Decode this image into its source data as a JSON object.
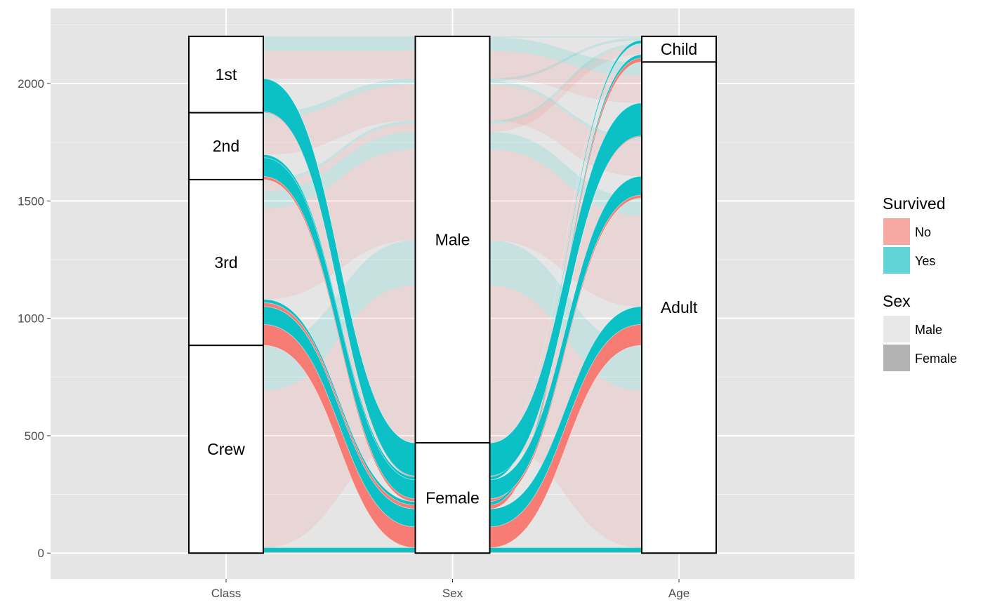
{
  "chart_data": {
    "type": "alluvial",
    "axes": [
      "Class",
      "Sex",
      "Age"
    ],
    "ylim": [
      -110,
      2320
    ],
    "yticks": [
      0,
      500,
      1000,
      1500,
      2000
    ],
    "grid": true,
    "legend_position": "right",
    "strata": {
      "Class": [
        {
          "label": "Crew",
          "value": 885
        },
        {
          "label": "3rd",
          "value": 706
        },
        {
          "label": "2nd",
          "value": 285
        },
        {
          "label": "1st",
          "value": 325
        }
      ],
      "Sex": [
        {
          "label": "Female",
          "value": 470
        },
        {
          "label": "Male",
          "value": 1731
        }
      ],
      "Age": [
        {
          "label": "Adult",
          "value": 2092
        },
        {
          "label": "Child",
          "value": 109
        }
      ]
    },
    "flows": [
      {
        "Class": "1st",
        "Sex": "Male",
        "Age": "Child",
        "Survived": "No",
        "value": 0
      },
      {
        "Class": "2nd",
        "Sex": "Male",
        "Age": "Child",
        "Survived": "No",
        "value": 0
      },
      {
        "Class": "3rd",
        "Sex": "Male",
        "Age": "Child",
        "Survived": "No",
        "value": 35
      },
      {
        "Class": "Crew",
        "Sex": "Male",
        "Age": "Child",
        "Survived": "No",
        "value": 0
      },
      {
        "Class": "1st",
        "Sex": "Female",
        "Age": "Child",
        "Survived": "No",
        "value": 0
      },
      {
        "Class": "2nd",
        "Sex": "Female",
        "Age": "Child",
        "Survived": "No",
        "value": 0
      },
      {
        "Class": "3rd",
        "Sex": "Female",
        "Age": "Child",
        "Survived": "No",
        "value": 17
      },
      {
        "Class": "Crew",
        "Sex": "Female",
        "Age": "Child",
        "Survived": "No",
        "value": 0
      },
      {
        "Class": "1st",
        "Sex": "Male",
        "Age": "Adult",
        "Survived": "No",
        "value": 118
      },
      {
        "Class": "2nd",
        "Sex": "Male",
        "Age": "Adult",
        "Survived": "No",
        "value": 154
      },
      {
        "Class": "3rd",
        "Sex": "Male",
        "Age": "Adult",
        "Survived": "No",
        "value": 387
      },
      {
        "Class": "Crew",
        "Sex": "Male",
        "Age": "Adult",
        "Survived": "No",
        "value": 670
      },
      {
        "Class": "1st",
        "Sex": "Female",
        "Age": "Adult",
        "Survived": "No",
        "value": 4
      },
      {
        "Class": "2nd",
        "Sex": "Female",
        "Age": "Adult",
        "Survived": "No",
        "value": 13
      },
      {
        "Class": "3rd",
        "Sex": "Female",
        "Age": "Adult",
        "Survived": "No",
        "value": 89
      },
      {
        "Class": "Crew",
        "Sex": "Female",
        "Age": "Adult",
        "Survived": "No",
        "value": 3
      },
      {
        "Class": "1st",
        "Sex": "Male",
        "Age": "Child",
        "Survived": "Yes",
        "value": 5
      },
      {
        "Class": "2nd",
        "Sex": "Male",
        "Age": "Child",
        "Survived": "Yes",
        "value": 11
      },
      {
        "Class": "3rd",
        "Sex": "Male",
        "Age": "Child",
        "Survived": "Yes",
        "value": 13
      },
      {
        "Class": "Crew",
        "Sex": "Male",
        "Age": "Child",
        "Survived": "Yes",
        "value": 0
      },
      {
        "Class": "1st",
        "Sex": "Female",
        "Age": "Child",
        "Survived": "Yes",
        "value": 1
      },
      {
        "Class": "2nd",
        "Sex": "Female",
        "Age": "Child",
        "Survived": "Yes",
        "value": 13
      },
      {
        "Class": "3rd",
        "Sex": "Female",
        "Age": "Child",
        "Survived": "Yes",
        "value": 14
      },
      {
        "Class": "Crew",
        "Sex": "Female",
        "Age": "Child",
        "Survived": "Yes",
        "value": 0
      },
      {
        "Class": "1st",
        "Sex": "Male",
        "Age": "Adult",
        "Survived": "Yes",
        "value": 57
      },
      {
        "Class": "2nd",
        "Sex": "Male",
        "Age": "Adult",
        "Survived": "Yes",
        "value": 14
      },
      {
        "Class": "3rd",
        "Sex": "Male",
        "Age": "Adult",
        "Survived": "Yes",
        "value": 75
      },
      {
        "Class": "Crew",
        "Sex": "Male",
        "Age": "Adult",
        "Survived": "Yes",
        "value": 192
      },
      {
        "Class": "1st",
        "Sex": "Female",
        "Age": "Adult",
        "Survived": "Yes",
        "value": 140
      },
      {
        "Class": "2nd",
        "Sex": "Female",
        "Age": "Adult",
        "Survived": "Yes",
        "value": 80
      },
      {
        "Class": "3rd",
        "Sex": "Female",
        "Age": "Adult",
        "Survived": "Yes",
        "value": 76
      },
      {
        "Class": "Crew",
        "Sex": "Female",
        "Age": "Adult",
        "Survived": "Yes",
        "value": 20
      }
    ],
    "legend": [
      {
        "title": "Survived",
        "items": [
          {
            "label": "No",
            "color": "#F8766D"
          },
          {
            "label": "Yes",
            "color": "#00BFC4"
          }
        ]
      },
      {
        "title": "Sex",
        "items": [
          {
            "label": "Male",
            "color": "#E8E8E8"
          },
          {
            "label": "Female",
            "color": "#B3B3B3"
          }
        ]
      }
    ],
    "colors": {
      "No": "#F8766D",
      "Yes": "#00BFC4",
      "panel_background": "#E5E5E5",
      "grid": "#FFFFFF"
    }
  }
}
